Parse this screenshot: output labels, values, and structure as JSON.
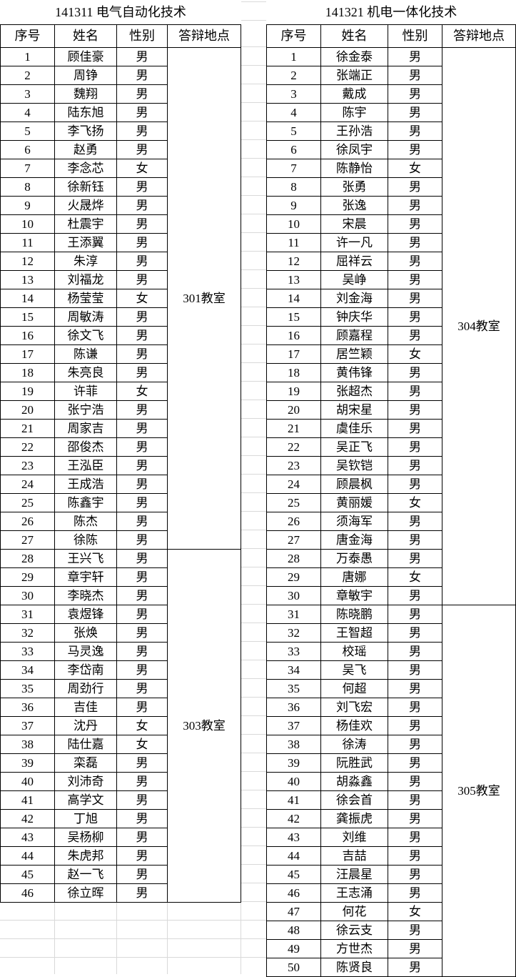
{
  "left": {
    "title": "141311  电气自动化技术",
    "headers": [
      "序号",
      "姓名",
      "性别",
      "答辩地点"
    ],
    "groups": [
      {
        "location": "301教室",
        "start": 1,
        "end": 27
      },
      {
        "location": "303教室",
        "start": 28,
        "end": 46
      }
    ],
    "rows": [
      [
        "1",
        "顾佳豪",
        "男"
      ],
      [
        "2",
        "周铮",
        "男"
      ],
      [
        "3",
        "魏翔",
        "男"
      ],
      [
        "4",
        "陆东旭",
        "男"
      ],
      [
        "5",
        "李飞扬",
        "男"
      ],
      [
        "6",
        "赵勇",
        "男"
      ],
      [
        "7",
        "李念芯",
        "女"
      ],
      [
        "8",
        "徐新钰",
        "男"
      ],
      [
        "9",
        "火晟烨",
        "男"
      ],
      [
        "10",
        "杜震宇",
        "男"
      ],
      [
        "11",
        "王添翼",
        "男"
      ],
      [
        "12",
        "朱淳",
        "男"
      ],
      [
        "13",
        "刘福龙",
        "男"
      ],
      [
        "14",
        "杨莹莹",
        "女"
      ],
      [
        "15",
        "周敏涛",
        "男"
      ],
      [
        "16",
        "徐文飞",
        "男"
      ],
      [
        "17",
        "陈谦",
        "男"
      ],
      [
        "18",
        "朱亮良",
        "男"
      ],
      [
        "19",
        "许菲",
        "女"
      ],
      [
        "20",
        "张宁浩",
        "男"
      ],
      [
        "21",
        "周家吉",
        "男"
      ],
      [
        "22",
        "邵俊杰",
        "男"
      ],
      [
        "23",
        "王泓臣",
        "男"
      ],
      [
        "24",
        "王成浩",
        "男"
      ],
      [
        "25",
        "陈鑫宇",
        "男"
      ],
      [
        "26",
        "陈杰",
        "男"
      ],
      [
        "27",
        "徐陈",
        "男"
      ],
      [
        "28",
        "王兴飞",
        "男"
      ],
      [
        "29",
        "章宇轩",
        "男"
      ],
      [
        "30",
        "李晓杰",
        "男"
      ],
      [
        "31",
        "袁煜锋",
        "男"
      ],
      [
        "32",
        "张焕",
        "男"
      ],
      [
        "33",
        "马灵逸",
        "男"
      ],
      [
        "34",
        "李岱南",
        "男"
      ],
      [
        "35",
        "周劲行",
        "男"
      ],
      [
        "36",
        "吉佳",
        "男"
      ],
      [
        "37",
        "沈丹",
        "女"
      ],
      [
        "38",
        "陆仕嘉",
        "女"
      ],
      [
        "39",
        "栾磊",
        "男"
      ],
      [
        "40",
        "刘沛奇",
        "男"
      ],
      [
        "41",
        "高学文",
        "男"
      ],
      [
        "42",
        "丁旭",
        "男"
      ],
      [
        "43",
        "吴杨柳",
        "男"
      ],
      [
        "44",
        "朱虎邦",
        "男"
      ],
      [
        "45",
        "赵一飞",
        "男"
      ],
      [
        "46",
        "徐立晖",
        "男"
      ]
    ]
  },
  "right": {
    "title": "141321  机电一体化技术",
    "headers": [
      "序号",
      "姓名",
      "性别",
      "答辩地点"
    ],
    "groups": [
      {
        "location": "304教室",
        "start": 1,
        "end": 30
      },
      {
        "location": "305教室",
        "start": 31,
        "end": 50
      }
    ],
    "rows": [
      [
        "1",
        "徐金泰",
        "男"
      ],
      [
        "2",
        "张端正",
        "男"
      ],
      [
        "3",
        "戴成",
        "男"
      ],
      [
        "4",
        "陈宇",
        "男"
      ],
      [
        "5",
        "王孙浩",
        "男"
      ],
      [
        "6",
        "徐凤宇",
        "男"
      ],
      [
        "7",
        "陈静怡",
        "女"
      ],
      [
        "8",
        "张勇",
        "男"
      ],
      [
        "9",
        "张逸",
        "男"
      ],
      [
        "10",
        "宋晨",
        "男"
      ],
      [
        "11",
        "许一凡",
        "男"
      ],
      [
        "12",
        "屈祥云",
        "男"
      ],
      [
        "13",
        "吴峥",
        "男"
      ],
      [
        "14",
        "刘金海",
        "男"
      ],
      [
        "15",
        "钟庆华",
        "男"
      ],
      [
        "16",
        "顾嘉程",
        "男"
      ],
      [
        "17",
        "居竺颖",
        "女"
      ],
      [
        "18",
        "黄伟锋",
        "男"
      ],
      [
        "19",
        "张超杰",
        "男"
      ],
      [
        "20",
        "胡宋星",
        "男"
      ],
      [
        "21",
        "虞佳乐",
        "男"
      ],
      [
        "22",
        "吴正飞",
        "男"
      ],
      [
        "23",
        "吴钦铠",
        "男"
      ],
      [
        "24",
        "顾晨枫",
        "男"
      ],
      [
        "25",
        "黄丽媛",
        "女"
      ],
      [
        "26",
        "须海军",
        "男"
      ],
      [
        "27",
        "唐金海",
        "男"
      ],
      [
        "28",
        "万泰愚",
        "男"
      ],
      [
        "29",
        "唐娜",
        "女"
      ],
      [
        "30",
        "章敏宇",
        "男"
      ],
      [
        "31",
        "陈晓鹏",
        "男"
      ],
      [
        "32",
        "王智超",
        "男"
      ],
      [
        "33",
        "校瑶",
        "男"
      ],
      [
        "34",
        "吴飞",
        "男"
      ],
      [
        "35",
        "何超",
        "男"
      ],
      [
        "36",
        "刘飞宏",
        "男"
      ],
      [
        "37",
        "杨佳欢",
        "男"
      ],
      [
        "38",
        "徐涛",
        "男"
      ],
      [
        "39",
        "阮胜武",
        "男"
      ],
      [
        "40",
        "胡淼鑫",
        "男"
      ],
      [
        "41",
        "徐会首",
        "男"
      ],
      [
        "42",
        "龚振虎",
        "男"
      ],
      [
        "43",
        "刘维",
        "男"
      ],
      [
        "44",
        "吉喆",
        "男"
      ],
      [
        "45",
        "汪晨星",
        "男"
      ],
      [
        "46",
        "王志涌",
        "男"
      ],
      [
        "47",
        "何花",
        "女"
      ],
      [
        "48",
        "徐云支",
        "男"
      ],
      [
        "49",
        "方世杰",
        "男"
      ],
      [
        "50",
        "陈贤良",
        "男"
      ]
    ]
  }
}
